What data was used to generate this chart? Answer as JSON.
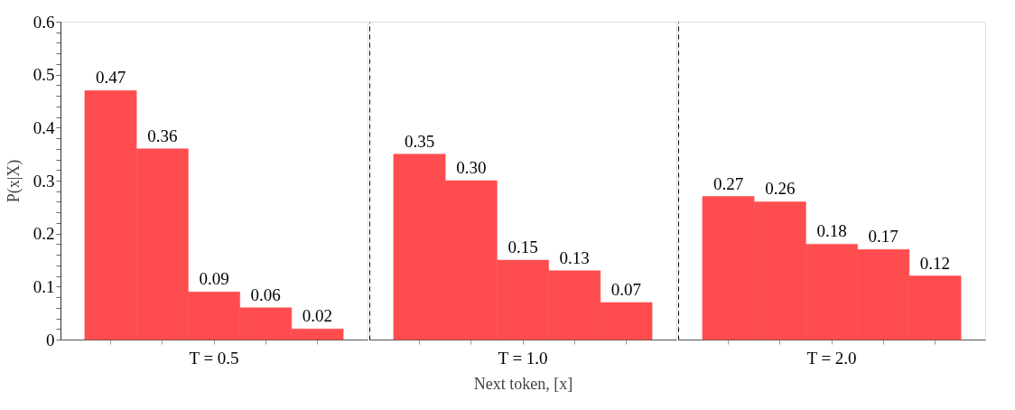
{
  "chart_data": [
    {
      "type": "bar",
      "ylabel": "P(x|X)",
      "categories": [
        null,
        null,
        "T = 0.5",
        null,
        null
      ],
      "series": [
        {
          "color": "#ff4d4f",
          "values": [
            0.47,
            0.36,
            0.09,
            0.06,
            0.02
          ],
          "value_labels": [
            "0.47",
            "0.36",
            "0.09",
            "0.06",
            "0.02"
          ]
        }
      ],
      "ylim": [
        0,
        0.6
      ],
      "yticks": [
        0,
        {
          "value": 0.02,
          "label": null
        },
        {
          "value": 0.04,
          "label": null
        },
        {
          "value": 0.06,
          "label": null
        },
        {
          "value": 0.08,
          "label": null
        },
        0.1,
        {
          "value": 0.12,
          "label": null
        },
        {
          "value": 0.14,
          "label": null
        },
        {
          "value": 0.16,
          "label": null
        },
        {
          "value": 0.18,
          "label": null
        },
        0.2,
        {
          "value": 0.22,
          "label": null
        },
        {
          "value": 0.24,
          "label": null
        },
        {
          "value": 0.26,
          "label": null
        },
        {
          "value": 0.28,
          "label": null
        },
        0.3,
        {
          "value": 0.32,
          "label": null
        },
        {
          "value": 0.34,
          "label": null
        },
        {
          "value": 0.36,
          "label": null
        },
        {
          "value": 0.38,
          "label": null
        },
        0.4,
        {
          "value": 0.42,
          "label": null
        },
        {
          "value": 0.44,
          "label": null
        },
        {
          "value": 0.46,
          "label": null
        },
        {
          "value": 0.48,
          "label": null
        },
        0.5,
        {
          "value": 0.52,
          "label": null
        },
        {
          "value": 0.54,
          "label": null
        },
        {
          "value": 0.56,
          "label": null
        },
        {
          "value": 0.58,
          "label": null
        },
        0.6
      ],
      "grid": false
    },
    {
      "type": "bar",
      "xlabel": "Next token, [x]",
      "categories": [
        null,
        null,
        "T = 1.0",
        null,
        null
      ],
      "series": [
        {
          "color": "#ff4d4f",
          "values": [
            0.35,
            0.3,
            0.15,
            0.13,
            0.07
          ],
          "value_labels": [
            "0.35",
            "0.30",
            "0.15",
            "0.13",
            "0.07"
          ]
        }
      ],
      "ylim": [
        0,
        0.6
      ],
      "tick_labels": "x",
      "grid": false
    },
    {
      "type": "bar",
      "categories": [
        null,
        null,
        "T = 2.0",
        null,
        null
      ],
      "series": [
        {
          "color": "#ff4d4f",
          "values": [
            0.27,
            0.26,
            0.18,
            0.17,
            0.12
          ],
          "value_labels": [
            "0.27",
            "0.26",
            "0.18",
            "0.17",
            "0.12"
          ]
        }
      ],
      "ylim": [
        0,
        0.6
      ],
      "tick_labels": "x",
      "grid": false
    }
  ]
}
